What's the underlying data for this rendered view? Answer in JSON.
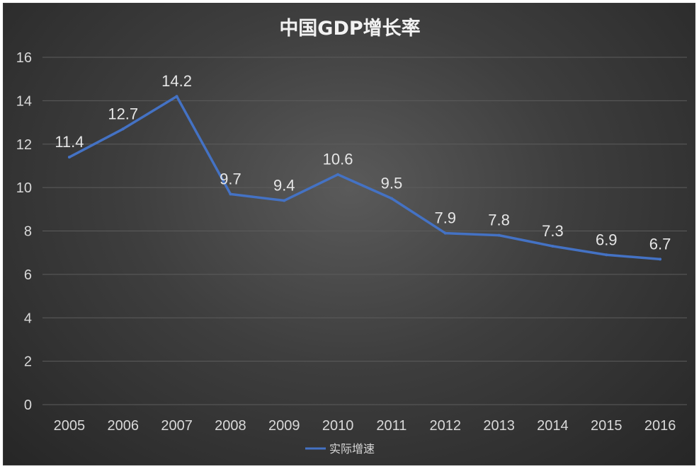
{
  "chart_data": {
    "type": "line",
    "title": "中国GDP增长率",
    "xlabel": "",
    "ylabel": "",
    "categories": [
      "2005",
      "2006",
      "2007",
      "2008",
      "2009",
      "2010",
      "2011",
      "2012",
      "2013",
      "2014",
      "2015",
      "2016"
    ],
    "series": [
      {
        "name": "实际增速",
        "values": [
          11.4,
          12.7,
          14.2,
          9.7,
          9.4,
          10.6,
          9.5,
          7.9,
          7.8,
          7.3,
          6.9,
          6.7
        ],
        "color": "#4472c4"
      }
    ],
    "ylim": [
      0,
      16
    ],
    "yticks": [
      0,
      2,
      4,
      6,
      8,
      10,
      12,
      14,
      16
    ],
    "grid": true,
    "legend": "bottom",
    "data_labels": true
  }
}
